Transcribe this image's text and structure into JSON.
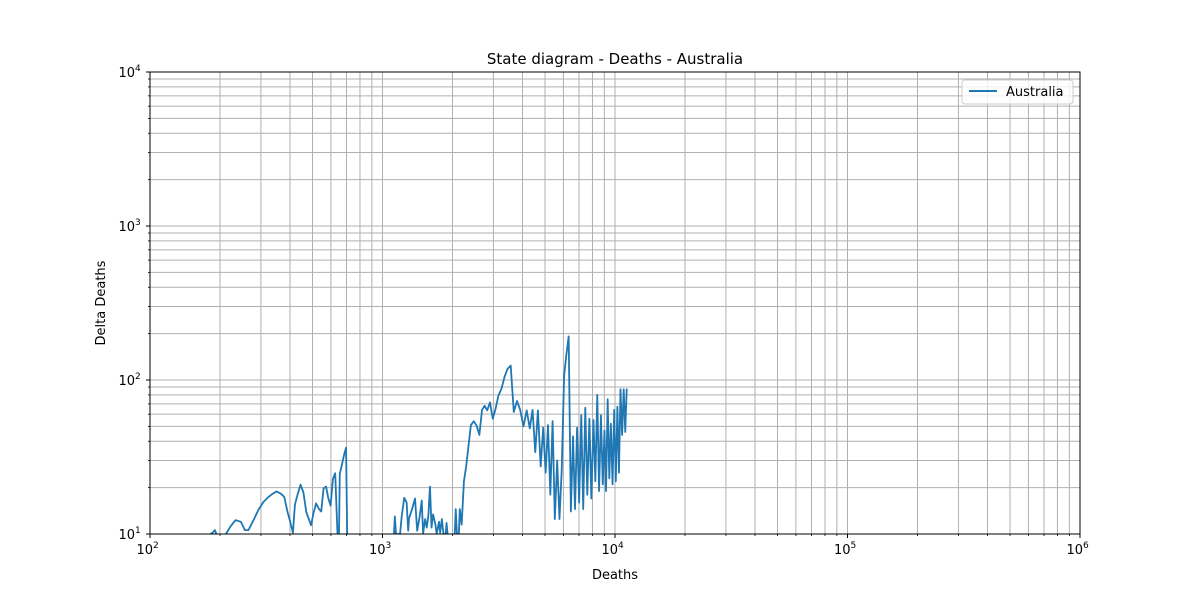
{
  "chart_data": {
    "type": "line",
    "title": "State diagram - Deaths - Australia",
    "xlabel": "Deaths",
    "ylabel": "Delta Deaths",
    "xscale": "log",
    "yscale": "log",
    "xlim": [
      100,
      1000000
    ],
    "ylim": [
      10,
      10000
    ],
    "x_ticks": [
      {
        "base": "10",
        "exp": "2"
      },
      {
        "base": "10",
        "exp": "3"
      },
      {
        "base": "10",
        "exp": "4"
      },
      {
        "base": "10",
        "exp": "5"
      },
      {
        "base": "10",
        "exp": "6"
      }
    ],
    "y_ticks": [
      {
        "base": "10",
        "exp": "1"
      },
      {
        "base": "10",
        "exp": "2"
      },
      {
        "base": "10",
        "exp": "3"
      },
      {
        "base": "10",
        "exp": "4"
      }
    ],
    "grid": true,
    "grid_minor": true,
    "legend": {
      "position": "top-right",
      "entries": [
        "Australia"
      ]
    },
    "series": [
      {
        "name": "Australia",
        "color": "#1f77b4",
        "segments": [
          [
            [
              182,
              10
            ],
            [
              186,
              10.2
            ],
            [
              190,
              10.6
            ],
            [
              193,
              10
            ]
          ],
          [
            [
              212,
              10
            ],
            [
              222,
              11.2
            ],
            [
              233,
              12.3
            ],
            [
              246,
              12.0
            ],
            [
              256,
              10.6
            ],
            [
              265,
              10.6
            ],
            [
              278,
              12.2
            ],
            [
              293,
              14.4
            ],
            [
              308,
              16.2
            ],
            [
              322,
              17.3
            ],
            [
              336,
              18.2
            ],
            [
              350,
              18.9
            ],
            [
              365,
              18.3
            ],
            [
              378,
              17.4
            ],
            [
              390,
              14.0
            ],
            [
              398,
              12.5
            ],
            [
              406,
              11.1
            ],
            [
              412,
              10.2
            ],
            [
              420,
              15.5
            ],
            [
              432,
              18.2
            ],
            [
              444,
              20.9
            ],
            [
              457,
              18.6
            ],
            [
              470,
              13.9
            ],
            [
              482,
              12.5
            ],
            [
              493,
              11.4
            ],
            [
              505,
              13.7
            ],
            [
              518,
              15.8
            ],
            [
              532,
              14.6
            ],
            [
              545,
              14.0
            ],
            [
              558,
              19.8
            ],
            [
              572,
              20.3
            ],
            [
              585,
              17.0
            ],
            [
              598,
              15.3
            ],
            [
              612,
              22.8
            ],
            [
              626,
              24.8
            ],
            [
              640,
              10.2
            ],
            [
              646,
              10
            ],
            [
              650,
              10
            ],
            [
              655,
              24.5
            ],
            [
              668,
              27.9
            ],
            [
              682,
              32.2
            ],
            [
              697,
              36.3
            ],
            [
              705,
              10
            ]
          ],
          [
            [
              1120,
              10
            ],
            [
              1130,
              13.0
            ],
            [
              1143,
              10
            ],
            [
              1190,
              10
            ],
            [
              1210,
              13.1
            ],
            [
              1240,
              17.2
            ],
            [
              1270,
              16.0
            ],
            [
              1290,
              10.5
            ],
            [
              1300,
              12.6
            ],
            [
              1340,
              14.5
            ],
            [
              1380,
              17.0
            ],
            [
              1410,
              10.5
            ],
            [
              1445,
              13.0
            ],
            [
              1475,
              16.5
            ],
            [
              1495,
              10.1
            ],
            [
              1525,
              12.5
            ],
            [
              1550,
              11.0
            ],
            [
              1575,
              13.2
            ],
            [
              1600,
              20.3
            ],
            [
              1625,
              11.0
            ],
            [
              1650,
              13.4
            ],
            [
              1690,
              11.5
            ],
            [
              1710,
              10
            ],
            [
              1750,
              12.0
            ],
            [
              1770,
              10.2
            ],
            [
              1800,
              12.5
            ],
            [
              1830,
              10
            ],
            [
              1870,
              10
            ],
            [
              1885,
              11.8
            ],
            [
              1905,
              10
            ]
          ],
          [
            [
              2045,
              10
            ],
            [
              2065,
              14.5
            ],
            [
              2090,
              10
            ],
            [
              2130,
              10
            ],
            [
              2150,
              14.5
            ],
            [
              2190,
              11.5
            ],
            [
              2240,
              22.0
            ],
            [
              2290,
              27.5
            ],
            [
              2340,
              36.5
            ],
            [
              2400,
              51.0
            ],
            [
              2470,
              54.0
            ],
            [
              2540,
              50.5
            ],
            [
              2610,
              44.0
            ],
            [
              2680,
              64.0
            ],
            [
              2750,
              68.0
            ],
            [
              2820,
              63.5
            ],
            [
              2900,
              71.5
            ],
            [
              2980,
              56.0
            ],
            [
              3060,
              64.5
            ],
            [
              3150,
              79.0
            ],
            [
              3250,
              88.0
            ],
            [
              3350,
              105.0
            ],
            [
              3450,
              118.0
            ],
            [
              3560,
              124.0
            ],
            [
              3670,
              62.0
            ],
            [
              3790,
              73.0
            ],
            [
              3910,
              64.0
            ],
            [
              4040,
              50.0
            ],
            [
              4170,
              63.5
            ],
            [
              4300,
              48.5
            ],
            [
              4420,
              64.0
            ],
            [
              4540,
              34.0
            ],
            [
              4660,
              63.5
            ],
            [
              4790,
              27.5
            ],
            [
              4910,
              49.0
            ],
            [
              5030,
              25.0
            ],
            [
              5150,
              51.0
            ],
            [
              5270,
              18.0
            ],
            [
              5390,
              54.0
            ],
            [
              5510,
              12.5
            ],
            [
              5640,
              30.0
            ],
            [
              5770,
              12.5
            ],
            [
              5900,
              26.0
            ],
            [
              6040,
              106.0
            ],
            [
              6180,
              147.0
            ],
            [
              6320,
              192.0
            ],
            [
              6460,
              14.0
            ],
            [
              6600,
              43.0
            ],
            [
              6730,
              14.5
            ],
            [
              6870,
              49.0
            ],
            [
              7010,
              16.0
            ],
            [
              7160,
              59.0
            ],
            [
              7300,
              14.5
            ],
            [
              7450,
              66.0
            ],
            [
              7600,
              18.0
            ],
            [
              7760,
              56.0
            ],
            [
              7910,
              17.0
            ],
            [
              8080,
              55.0
            ],
            [
              8230,
              22.0
            ],
            [
              8390,
              80.0
            ],
            [
              8540,
              19.0
            ],
            [
              8700,
              59.0
            ],
            [
              8860,
              21.0
            ],
            [
              9010,
              47.0
            ],
            [
              9150,
              19.0
            ],
            [
              9300,
              75.0
            ],
            [
              9450,
              23.0
            ],
            [
              9600,
              52.0
            ],
            [
              9760,
              21.0
            ],
            [
              9920,
              64.0
            ],
            [
              10080,
              22.0
            ],
            [
              10240,
              67.0
            ],
            [
              10400,
              25.0
            ],
            [
              10560,
              87.0
            ],
            [
              10730,
              44.0
            ],
            [
              10900,
              87.0
            ],
            [
              11070,
              46.0
            ],
            [
              11230,
              88.0
            ]
          ]
        ]
      }
    ]
  }
}
